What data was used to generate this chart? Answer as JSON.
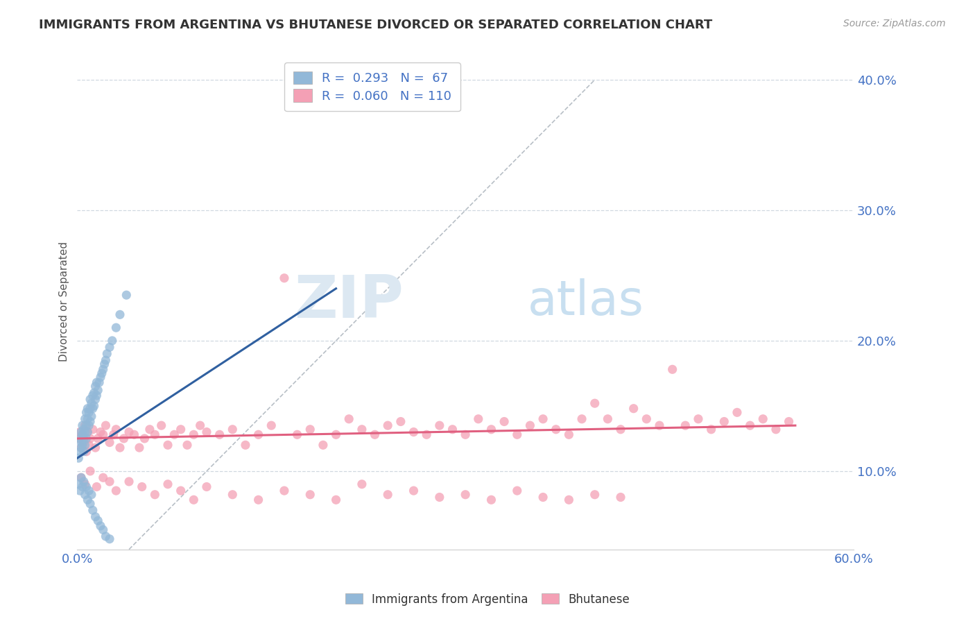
{
  "title": "IMMIGRANTS FROM ARGENTINA VS BHUTANESE DIVORCED OR SEPARATED CORRELATION CHART",
  "source_text": "Source: ZipAtlas.com",
  "ylabel": "Divorced or Separated",
  "xlim": [
    0.0,
    0.6
  ],
  "ylim": [
    0.04,
    0.42
  ],
  "x_ticks": [
    0.0,
    0.1,
    0.2,
    0.3,
    0.4,
    0.5,
    0.6
  ],
  "x_tick_labels": [
    "0.0%",
    "",
    "",
    "",
    "",
    "",
    "60.0%"
  ],
  "y_ticks": [
    0.1,
    0.2,
    0.3,
    0.4
  ],
  "y_tick_labels": [
    "10.0%",
    "20.0%",
    "30.0%",
    "40.0%"
  ],
  "blue_color": "#92b8d8",
  "pink_color": "#f4a0b5",
  "blue_line_color": "#3060a0",
  "pink_line_color": "#e06080",
  "blue_scatter_x": [
    0.001,
    0.002,
    0.002,
    0.003,
    0.003,
    0.003,
    0.004,
    0.004,
    0.004,
    0.005,
    0.005,
    0.005,
    0.006,
    0.006,
    0.006,
    0.007,
    0.007,
    0.007,
    0.008,
    0.008,
    0.008,
    0.009,
    0.009,
    0.01,
    0.01,
    0.01,
    0.011,
    0.011,
    0.012,
    0.012,
    0.013,
    0.013,
    0.014,
    0.014,
    0.015,
    0.015,
    0.016,
    0.017,
    0.018,
    0.019,
    0.02,
    0.021,
    0.022,
    0.023,
    0.025,
    0.027,
    0.03,
    0.033,
    0.038,
    0.001,
    0.002,
    0.003,
    0.004,
    0.005,
    0.006,
    0.007,
    0.008,
    0.009,
    0.01,
    0.011,
    0.012,
    0.014,
    0.016,
    0.018,
    0.02,
    0.022,
    0.025
  ],
  "blue_scatter_y": [
    0.11,
    0.115,
    0.125,
    0.118,
    0.122,
    0.13,
    0.12,
    0.128,
    0.135,
    0.115,
    0.125,
    0.132,
    0.12,
    0.13,
    0.14,
    0.125,
    0.135,
    0.145,
    0.13,
    0.14,
    0.148,
    0.135,
    0.145,
    0.138,
    0.148,
    0.155,
    0.142,
    0.152,
    0.148,
    0.158,
    0.15,
    0.16,
    0.155,
    0.165,
    0.158,
    0.168,
    0.162,
    0.168,
    0.172,
    0.175,
    0.178,
    0.182,
    0.185,
    0.19,
    0.195,
    0.2,
    0.21,
    0.22,
    0.235,
    0.09,
    0.085,
    0.095,
    0.088,
    0.092,
    0.082,
    0.088,
    0.078,
    0.085,
    0.075,
    0.082,
    0.07,
    0.065,
    0.062,
    0.058,
    0.055,
    0.05,
    0.048
  ],
  "pink_scatter_x": [
    0.001,
    0.002,
    0.003,
    0.004,
    0.005,
    0.006,
    0.007,
    0.008,
    0.009,
    0.01,
    0.012,
    0.014,
    0.016,
    0.018,
    0.02,
    0.022,
    0.025,
    0.028,
    0.03,
    0.033,
    0.036,
    0.04,
    0.044,
    0.048,
    0.052,
    0.056,
    0.06,
    0.065,
    0.07,
    0.075,
    0.08,
    0.085,
    0.09,
    0.095,
    0.1,
    0.11,
    0.12,
    0.13,
    0.14,
    0.15,
    0.16,
    0.17,
    0.18,
    0.19,
    0.2,
    0.21,
    0.22,
    0.23,
    0.24,
    0.25,
    0.26,
    0.27,
    0.28,
    0.29,
    0.3,
    0.31,
    0.32,
    0.33,
    0.34,
    0.35,
    0.36,
    0.37,
    0.38,
    0.39,
    0.4,
    0.41,
    0.42,
    0.43,
    0.44,
    0.45,
    0.46,
    0.47,
    0.48,
    0.49,
    0.5,
    0.51,
    0.52,
    0.53,
    0.54,
    0.55,
    0.003,
    0.006,
    0.01,
    0.015,
    0.02,
    0.025,
    0.03,
    0.04,
    0.05,
    0.06,
    0.07,
    0.08,
    0.09,
    0.1,
    0.12,
    0.14,
    0.16,
    0.18,
    0.2,
    0.22,
    0.24,
    0.26,
    0.28,
    0.3,
    0.32,
    0.34,
    0.36,
    0.38,
    0.4,
    0.42
  ],
  "pink_scatter_y": [
    0.125,
    0.13,
    0.118,
    0.128,
    0.122,
    0.135,
    0.115,
    0.13,
    0.12,
    0.125,
    0.132,
    0.118,
    0.125,
    0.13,
    0.128,
    0.135,
    0.122,
    0.128,
    0.132,
    0.118,
    0.125,
    0.13,
    0.128,
    0.118,
    0.125,
    0.132,
    0.128,
    0.135,
    0.12,
    0.128,
    0.132,
    0.12,
    0.128,
    0.135,
    0.13,
    0.128,
    0.132,
    0.12,
    0.128,
    0.135,
    0.248,
    0.128,
    0.132,
    0.12,
    0.128,
    0.14,
    0.132,
    0.128,
    0.135,
    0.138,
    0.13,
    0.128,
    0.135,
    0.132,
    0.128,
    0.14,
    0.132,
    0.138,
    0.128,
    0.135,
    0.14,
    0.132,
    0.128,
    0.14,
    0.152,
    0.14,
    0.132,
    0.148,
    0.14,
    0.135,
    0.178,
    0.135,
    0.14,
    0.132,
    0.138,
    0.145,
    0.135,
    0.14,
    0.132,
    0.138,
    0.095,
    0.09,
    0.1,
    0.088,
    0.095,
    0.092,
    0.085,
    0.092,
    0.088,
    0.082,
    0.09,
    0.085,
    0.078,
    0.088,
    0.082,
    0.078,
    0.085,
    0.082,
    0.078,
    0.09,
    0.082,
    0.085,
    0.08,
    0.082,
    0.078,
    0.085,
    0.08,
    0.078,
    0.082,
    0.08
  ]
}
